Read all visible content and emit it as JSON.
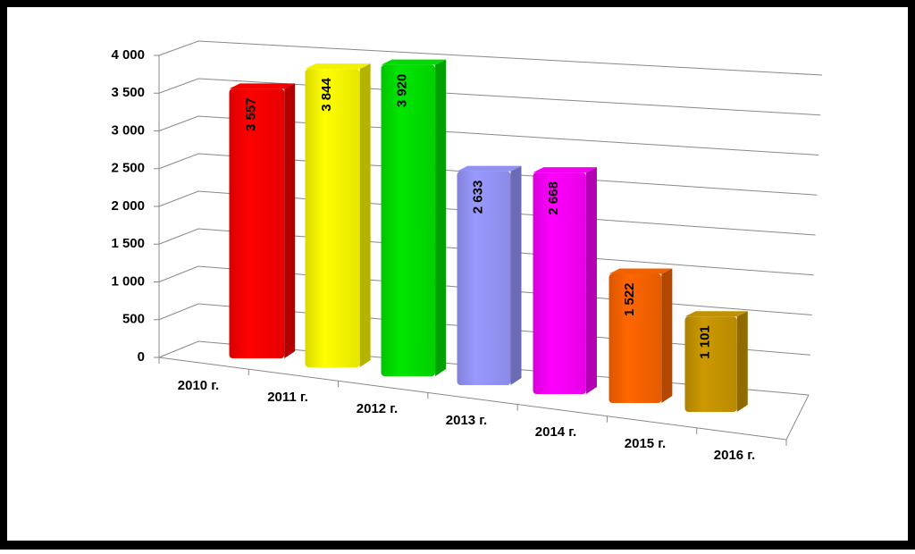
{
  "chart_data": {
    "type": "bar3d",
    "categories": [
      "2010 г.",
      "2011 г.",
      "2012 г.",
      "2013 г.",
      "2014 г.",
      "2015 г.",
      "2016 г."
    ],
    "series": [
      {
        "values": [
          3557,
          3844,
          3920,
          2633,
          2668,
          1522,
          1101
        ],
        "value_labels": [
          "3 557",
          "3 844",
          "3 920",
          "2 633",
          "2 668",
          "1 522",
          "1 101"
        ],
        "colors": [
          "#ff0000",
          "#ffff00",
          "#00e600",
          "#9999ff",
          "#ff00ff",
          "#ff6600",
          "#cc9900"
        ]
      }
    ],
    "ylim": [
      0,
      4000
    ],
    "yticks": [
      0,
      500,
      {
        "value": 1000,
        "label": "1 000"
      },
      {
        "value": 1500,
        "label": "1 500"
      },
      {
        "value": 2000,
        "label": "2 000"
      },
      {
        "value": 2500,
        "label": "2 500"
      },
      {
        "value": 3000,
        "label": "3 000"
      },
      {
        "value": 3500,
        "label": "3 500"
      },
      {
        "value": 4000,
        "label": "4 000"
      }
    ],
    "grid": true
  }
}
